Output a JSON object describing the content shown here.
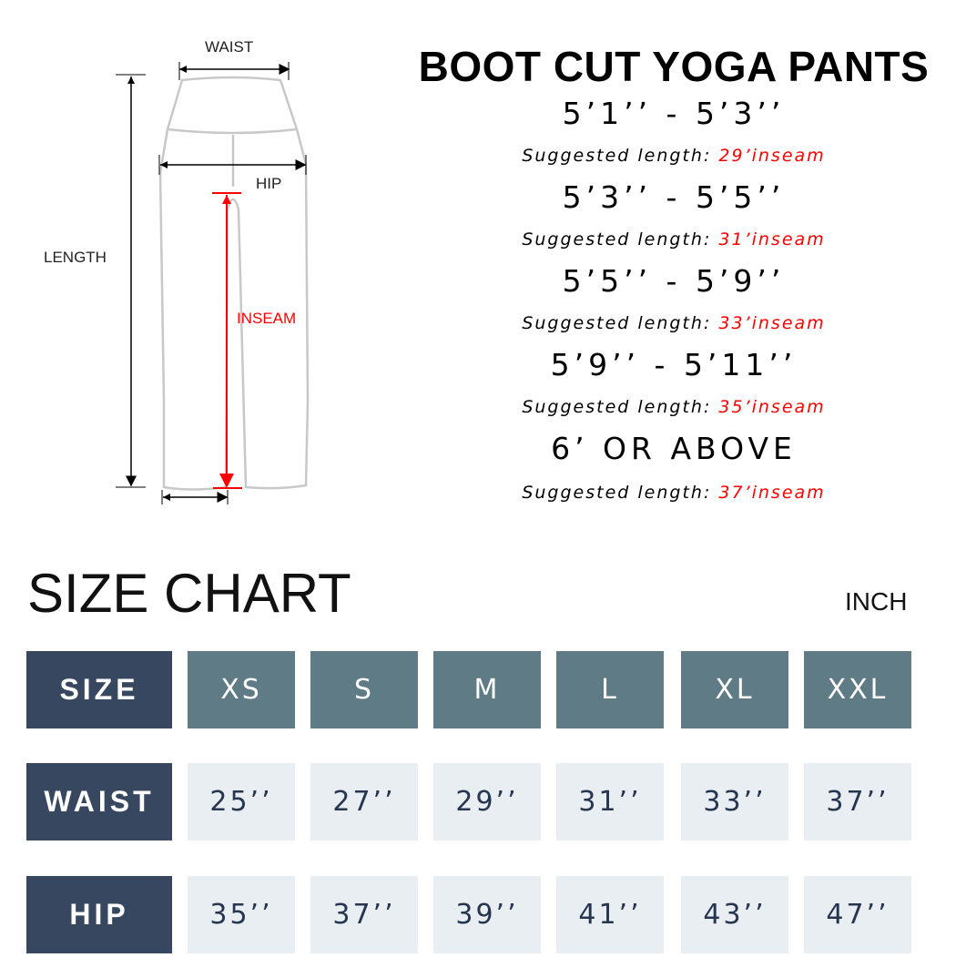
{
  "diagram": {
    "waist": "WAIST",
    "hip": "HIP",
    "length": "LENGTH",
    "inseam": "INSEAM"
  },
  "title": "BOOT CUT YOGA PANTS",
  "suggestions": [
    {
      "range": "5’1’’ - 5’3’’",
      "prefix": "Suggested length: ",
      "length": "29’inseam"
    },
    {
      "range": "5’3’’ - 5’5’’",
      "prefix": "Suggested length: ",
      "length": "31’inseam"
    },
    {
      "range": "5’5’’ - 5’9’’",
      "prefix": "Suggested length: ",
      "length": "33’inseam"
    },
    {
      "range": "5’9’’ - 5’11’’",
      "prefix": "Suggested length: ",
      "length": "35’inseam"
    },
    {
      "range": "6’ OR ABOVE",
      "prefix": "Suggested length: ",
      "length": "37’inseam"
    }
  ],
  "size_chart": {
    "title": "SIZE CHART",
    "unit": "INCH",
    "rows": [
      {
        "label": "SIZE",
        "values": [
          "XS",
          "S",
          "M",
          "L",
          "XL",
          "XXL"
        ]
      },
      {
        "label": "WAIST",
        "values": [
          "25’’",
          "27’’",
          "29’’",
          "31’’",
          "33’’",
          "37’’"
        ]
      },
      {
        "label": "HIP",
        "values": [
          "35’’",
          "37’’",
          "39’’",
          "41’’",
          "43’’",
          "47’’"
        ]
      }
    ]
  },
  "colors": {
    "label_bg": "#374760",
    "header_bg": "#5f7b86",
    "value_bg": "#e9eef2",
    "accent_red": "#ff0000"
  }
}
